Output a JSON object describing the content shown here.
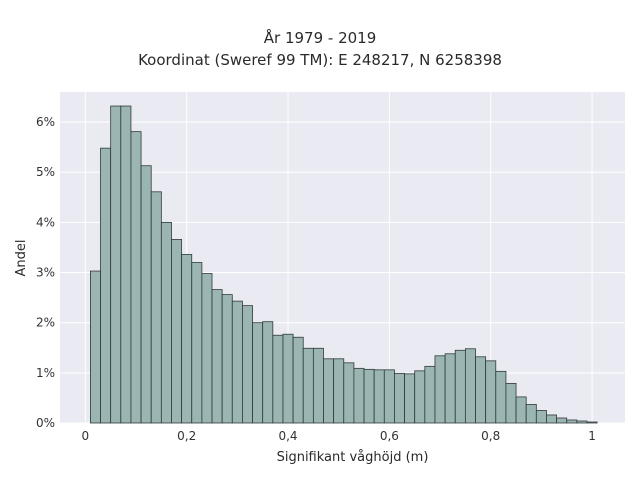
{
  "title_line1": "År 1979 - 2019",
  "title_line2": "Koordinat (Sweref 99 TM): E 248217, N 6258398",
  "chart_data": {
    "type": "bar",
    "title": "År 1979 - 2019\nKoordinat (Sweref 99 TM): E 248217, N 6258398",
    "xlabel": "Signifikant våghöjd (m)",
    "ylabel": "Andel",
    "xlim": [
      -0.05,
      1.065
    ],
    "ylim": [
      0,
      0.066
    ],
    "bin_width": 0.02,
    "bin_starts": [
      0.01,
      0.03,
      0.05,
      0.07,
      0.09,
      0.11,
      0.13,
      0.15,
      0.17,
      0.19,
      0.21,
      0.23,
      0.25,
      0.27,
      0.29,
      0.31,
      0.33,
      0.35,
      0.37,
      0.39,
      0.41,
      0.43,
      0.45,
      0.47,
      0.49,
      0.51,
      0.53,
      0.55,
      0.57,
      0.59,
      0.61,
      0.63,
      0.65,
      0.67,
      0.69,
      0.71,
      0.73,
      0.75,
      0.77,
      0.79,
      0.81,
      0.83,
      0.85,
      0.87,
      0.89,
      0.91,
      0.93,
      0.95,
      0.97,
      0.99,
      1.01
    ],
    "values": [
      0.0303,
      0.0548,
      0.0632,
      0.0632,
      0.0581,
      0.0513,
      0.0461,
      0.04,
      0.0366,
      0.0336,
      0.032,
      0.0298,
      0.0266,
      0.0256,
      0.0243,
      0.0234,
      0.02,
      0.0202,
      0.0175,
      0.0177,
      0.0171,
      0.0149,
      0.0149,
      0.0128,
      0.0128,
      0.012,
      0.0109,
      0.0107,
      0.0106,
      0.0106,
      0.0099,
      0.0098,
      0.0104,
      0.0113,
      0.0134,
      0.0138,
      0.0145,
      0.0148,
      0.0132,
      0.0124,
      0.0103,
      0.0079,
      0.0052,
      0.0037,
      0.0025,
      0.0016,
      0.001,
      0.0006,
      0.0004,
      0.0002,
      0.0
    ],
    "x_ticks": [
      0,
      0.2,
      0.4,
      0.6,
      0.8,
      1
    ],
    "x_tick_labels": [
      "0",
      "0,2",
      "0,4",
      "0,6",
      "0,8",
      "1"
    ],
    "y_ticks": [
      0,
      0.01,
      0.02,
      0.03,
      0.04,
      0.05,
      0.06
    ],
    "y_tick_labels": [
      "0%",
      "1%",
      "2%",
      "3%",
      "4%",
      "5%",
      "6%"
    ],
    "grid": true,
    "bar_color": "#9bb5b3",
    "bar_edge_color": "#2f3a3a",
    "plot_background": "#eaeaf2",
    "grid_color": "#ffffff"
  }
}
